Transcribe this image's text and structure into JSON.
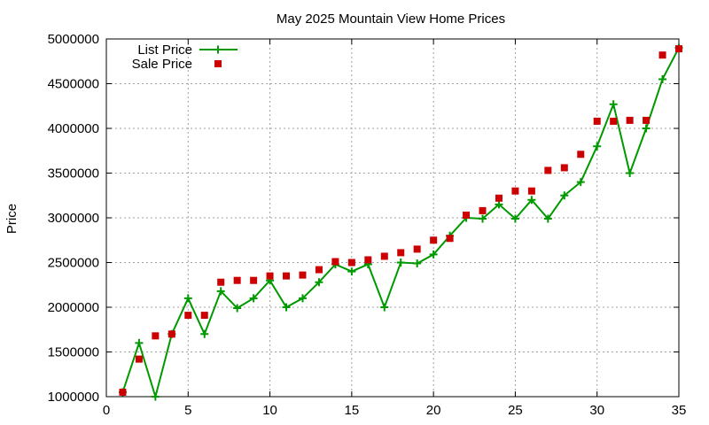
{
  "chart_data": {
    "type": "line",
    "title": "May 2025 Mountain View Home Prices",
    "xlabel": "",
    "ylabel": "Price",
    "xlim": [
      0,
      35
    ],
    "ylim": [
      1000000,
      5000000
    ],
    "xticks": [
      0,
      5,
      10,
      15,
      20,
      25,
      30,
      35
    ],
    "yticks": [
      1000000,
      1500000,
      2000000,
      2500000,
      3000000,
      3500000,
      4000000,
      4500000,
      5000000
    ],
    "grid": true,
    "legend_position": "top-left",
    "series": [
      {
        "name": "List Price",
        "style": "line-plus",
        "color": "#009900",
        "x": [
          1,
          2,
          3,
          4,
          5,
          6,
          7,
          8,
          9,
          10,
          11,
          12,
          13,
          14,
          15,
          16,
          17,
          18,
          19,
          20,
          21,
          22,
          23,
          24,
          25,
          26,
          27,
          28,
          29,
          30,
          31,
          32,
          33,
          34,
          35
        ],
        "values": [
          1050000,
          1600000,
          1000000,
          1700000,
          2100000,
          1700000,
          2180000,
          1990000,
          2100000,
          2300000,
          2000000,
          2100000,
          2280000,
          2480000,
          2400000,
          2480000,
          2000000,
          2500000,
          2490000,
          2590000,
          2800000,
          3000000,
          2990000,
          3150000,
          2990000,
          3200000,
          2990000,
          3250000,
          3400000,
          3800000,
          4270000,
          3500000,
          4000000,
          4550000,
          4900000
        ]
      },
      {
        "name": "Sale Price",
        "style": "square",
        "color": "#cc0000",
        "x": [
          1,
          2,
          3,
          4,
          5,
          6,
          7,
          8,
          9,
          10,
          11,
          12,
          13,
          14,
          15,
          16,
          17,
          18,
          19,
          20,
          21,
          22,
          23,
          24,
          25,
          26,
          27,
          28,
          29,
          30,
          31,
          32,
          33,
          34,
          35
        ],
        "values": [
          1050000,
          1420000,
          1680000,
          1700000,
          1910000,
          1910000,
          2280000,
          2300000,
          2300000,
          2350000,
          2350000,
          2360000,
          2420000,
          2510000,
          2500000,
          2530000,
          2570000,
          2610000,
          2650000,
          2750000,
          2770000,
          3030000,
          3080000,
          3220000,
          3300000,
          3300000,
          3530000,
          3560000,
          3710000,
          4080000,
          4080000,
          4090000,
          4090000,
          4820000,
          4890000
        ]
      }
    ]
  }
}
